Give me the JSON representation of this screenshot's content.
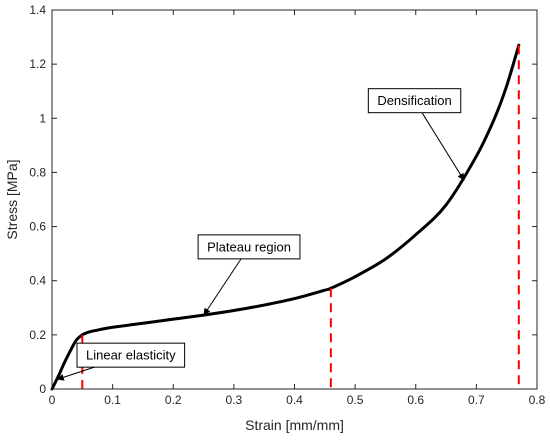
{
  "chart_data": {
    "type": "line",
    "title": "",
    "xlabel": "Strain [mm/mm]",
    "ylabel": "Stress [MPa]",
    "xlim": [
      0,
      0.8
    ],
    "ylim": [
      0,
      1.4
    ],
    "grid": false,
    "legend": "none",
    "x_ticks": [
      "0",
      "0.1",
      "0.2",
      "0.3",
      "0.4",
      "0.5",
      "0.6",
      "0.7",
      "0.8"
    ],
    "y_ticks": [
      "0",
      "0.2",
      "0.4",
      "0.6",
      "0.8",
      "1",
      "1.2",
      "1.4"
    ],
    "series": [
      {
        "color": "#000000",
        "x": [
          0,
          0.01,
          0.02,
          0.03,
          0.04,
          0.05,
          0.06,
          0.08,
          0.1,
          0.15,
          0.2,
          0.25,
          0.3,
          0.35,
          0.4,
          0.45,
          0.46,
          0.5,
          0.55,
          0.6,
          0.65,
          0.7,
          0.73,
          0.75,
          0.77
        ],
        "y": [
          0,
          0.045,
          0.095,
          0.14,
          0.18,
          0.2,
          0.21,
          0.22,
          0.228,
          0.243,
          0.258,
          0.273,
          0.29,
          0.31,
          0.334,
          0.365,
          0.372,
          0.415,
          0.48,
          0.57,
          0.68,
          0.86,
          1.0,
          1.12,
          1.27
        ]
      }
    ],
    "dividers": {
      "color": "#ff0000",
      "lines": [
        {
          "x": 0.05,
          "y": 0.2
        },
        {
          "x": 0.46,
          "y": 0.372
        },
        {
          "x": 0.77,
          "y": 1.27
        }
      ]
    },
    "annotations": [
      {
        "text": "Linear elasticity",
        "box_x": 0.13,
        "box_y": 0.125,
        "arrow_to_x": 0.008,
        "arrow_to_y": 0.035
      },
      {
        "text": "Plateau region",
        "box_x": 0.325,
        "box_y": 0.525,
        "arrow_to_x": 0.25,
        "arrow_to_y": 0.272
      },
      {
        "text": "Densification",
        "box_x": 0.598,
        "box_y": 1.065,
        "arrow_to_x": 0.68,
        "arrow_to_y": 0.77
      }
    ]
  }
}
